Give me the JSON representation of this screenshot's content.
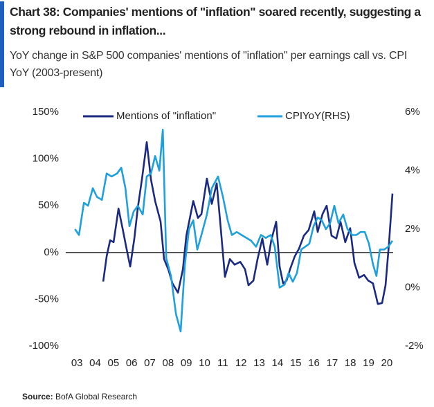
{
  "chart_data": {
    "type": "line",
    "title": "Chart 38: Companies' mentions of \"inflation\" soared recently, suggesting a strong rebound in inflation...",
    "subtitle": "YoY change in S&P 500 companies' mentions of \"inflation\" per earnings call vs. CPI YoY (2003-present)",
    "source_label": "Source:",
    "source": "BofA Global Research",
    "xlim": [
      2002.5,
      2020.5
    ],
    "xticks": [
      {
        "value": 2003,
        "label": "03"
      },
      {
        "value": 2004,
        "label": "04"
      },
      {
        "value": 2005,
        "label": "05"
      },
      {
        "value": 2006,
        "label": "06"
      },
      {
        "value": 2007,
        "label": "07"
      },
      {
        "value": 2008,
        "label": "08"
      },
      {
        "value": 2009,
        "label": "09"
      },
      {
        "value": 2010,
        "label": "10"
      },
      {
        "value": 2011,
        "label": "11"
      },
      {
        "value": 2012,
        "label": "12"
      },
      {
        "value": 2013,
        "label": "13"
      },
      {
        "value": 2014,
        "label": "14"
      },
      {
        "value": 2015,
        "label": "15"
      },
      {
        "value": 2016,
        "label": "16"
      },
      {
        "value": 2017,
        "label": "17"
      },
      {
        "value": 2018,
        "label": "18"
      },
      {
        "value": 2019,
        "label": "19"
      },
      {
        "value": 2020,
        "label": "20"
      }
    ],
    "ylim": [
      -100,
      150
    ],
    "yticks": [
      {
        "value": -100,
        "label": "-100%"
      },
      {
        "value": -50,
        "label": "-50%"
      },
      {
        "value": 0,
        "label": "0%"
      },
      {
        "value": 50,
        "label": "50%"
      },
      {
        "value": 100,
        "label": "100%"
      },
      {
        "value": 150,
        "label": "150%"
      }
    ],
    "y2lim": [
      -2,
      6
    ],
    "y2ticks": [
      {
        "value": -2,
        "label": "-2%"
      },
      {
        "value": 0,
        "label": "0%"
      },
      {
        "value": 2,
        "label": "2%"
      },
      {
        "value": 4,
        "label": "4%"
      },
      {
        "value": 6,
        "label": "6%"
      }
    ],
    "legend": "top",
    "series": [
      {
        "name": "Mentions of \"inflation\"",
        "color": "#1b2a80",
        "axis": "y",
        "x": [
          2004.44,
          2004.63,
          2004.82,
          2005.01,
          2005.28,
          2005.5,
          2005.69,
          2005.92,
          2006.15,
          2006.34,
          2006.57,
          2006.83,
          2007.06,
          2007.29,
          2007.59,
          2007.78,
          2008.01,
          2008.24,
          2008.54,
          2008.81,
          2009.0,
          2009.38,
          2009.64,
          2009.83,
          2010.13,
          2010.4,
          2010.67,
          2010.89,
          2011.12,
          2011.39,
          2011.65,
          2011.96,
          2012.22,
          2012.41,
          2012.68,
          2012.91,
          2013.17,
          2013.44,
          2013.66,
          2013.93,
          2014.12,
          2014.31,
          2014.5,
          2014.69,
          2014.95,
          2015.18,
          2015.45,
          2015.71,
          2016.02,
          2016.21,
          2016.47,
          2016.7,
          2016.97,
          2017.23,
          2017.46,
          2017.72,
          2017.99,
          2018.22,
          2018.48,
          2018.75,
          2018.98,
          2019.24,
          2019.51,
          2019.74,
          2019.93,
          2020.12,
          2020.31
        ],
        "values": [
          -31,
          -4,
          13,
          11,
          47,
          26,
          7,
          -15,
          15,
          48,
          79,
          118,
          78,
          55,
          33,
          -7,
          -18,
          -33,
          -43,
          -18,
          18,
          55,
          37,
          41,
          79,
          52,
          74,
          26,
          -26,
          -7,
          -13,
          -10,
          -18,
          -35,
          -30,
          -7,
          15,
          -13,
          13,
          33,
          -15,
          -33,
          -30,
          -18,
          -4,
          4,
          18,
          24,
          44,
          22,
          41,
          50,
          18,
          15,
          33,
          11,
          26,
          -11,
          -27,
          -24,
          -30,
          -33,
          -55,
          -54,
          -35,
          10,
          63
        ]
      },
      {
        "name": "CPIYoY(RHS)",
        "color": "#1ea0dc",
        "axis": "y2",
        "x": [
          2002.89,
          2003.11,
          2003.38,
          2003.61,
          2003.87,
          2004.1,
          2004.37,
          2004.63,
          2004.9,
          2005.2,
          2005.43,
          2005.66,
          2005.88,
          2006.11,
          2006.34,
          2006.61,
          2006.83,
          2007.06,
          2007.29,
          2007.52,
          2007.71,
          2007.9,
          2008.16,
          2008.43,
          2008.69,
          2008.92,
          2009.15,
          2009.38,
          2009.6,
          2009.83,
          2010.13,
          2010.4,
          2010.74,
          2011.01,
          2011.27,
          2011.5,
          2011.77,
          2012.03,
          2012.3,
          2012.56,
          2012.83,
          2013.09,
          2013.36,
          2013.63,
          2013.85,
          2014.12,
          2014.39,
          2014.61,
          2014.84,
          2015.07,
          2015.3,
          2015.52,
          2015.75,
          2015.98,
          2016.21,
          2016.43,
          2016.66,
          2016.89,
          2017.12,
          2017.35,
          2017.61,
          2017.84,
          2018.1,
          2018.33,
          2018.56,
          2018.79,
          2019.02,
          2019.24,
          2019.43,
          2019.62,
          2019.85,
          2020.08,
          2020.31
        ],
        "values": [
          2.0,
          1.8,
          2.9,
          2.8,
          3.4,
          3.1,
          3.0,
          3.9,
          3.8,
          3.9,
          4.1,
          3.4,
          2.1,
          2.6,
          2.8,
          2.5,
          3.8,
          3.9,
          4.5,
          4.0,
          5.4,
          1.0,
          0.4,
          -0.9,
          -1.5,
          0.8,
          2.0,
          2.3,
          1.3,
          1.8,
          2.5,
          3.4,
          3.8,
          3.1,
          2.3,
          1.8,
          1.9,
          1.8,
          1.7,
          1.6,
          1.4,
          1.8,
          1.7,
          1.8,
          1.4,
          0.0,
          0.1,
          0.5,
          0.2,
          0.5,
          1.3,
          1.4,
          1.5,
          2.1,
          2.4,
          2.3,
          2.0,
          2.2,
          2.8,
          2.2,
          2.5,
          2.0,
          1.8,
          1.8,
          1.9,
          1.9,
          1.5,
          0.8,
          0.4,
          1.3,
          1.3,
          1.4,
          1.6
        ]
      }
    ]
  }
}
